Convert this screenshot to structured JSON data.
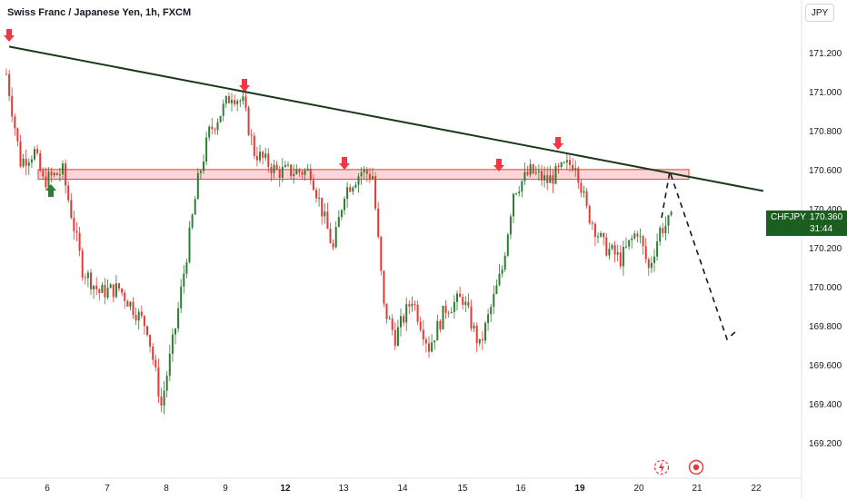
{
  "header": {
    "title": "Swiss Franc / Japanese Yen, 1h, FXCM",
    "currency_button": "JPY"
  },
  "price_tag": {
    "symbol": "CHFJPY",
    "price": "170.360",
    "countdown": "31:44"
  },
  "y_axis": {
    "labels": [
      "171.200",
      "171.000",
      "170.800",
      "170.600",
      "170.400",
      "170.200",
      "170.000",
      "169.800",
      "169.600",
      "169.400",
      "169.200"
    ]
  },
  "x_axis": {
    "labels": [
      "6",
      "7",
      "8",
      "9",
      "12",
      "13",
      "14",
      "15",
      "16",
      "19",
      "20",
      "21",
      "22"
    ],
    "bold_labels": [
      "12",
      "19"
    ]
  },
  "icons": {
    "flash": "lightning-icon",
    "record": "target-icon"
  },
  "colors": {
    "up_candle": "#2e7d32",
    "down_candle": "#e53935",
    "trendline": "#1b3a1b",
    "zone_fill": "#f8c8cc",
    "zone_border": "#e53935",
    "arrow_red": "#f23645",
    "arrow_green": "#2e7d32",
    "price_tag_bg": "#1b5e20"
  },
  "chart_data": {
    "type": "candlestick",
    "symbol": "CHFJPY",
    "timeframe": "1h",
    "ylim": [
      169.15,
      171.35
    ],
    "resistance_zone": [
      170.56,
      170.61
    ],
    "trendline": {
      "start_price": 171.24,
      "end_price": 170.5
    },
    "projection": {
      "from": 170.6,
      "to": 169.74
    },
    "anchors": [
      [
        0,
        171.1
      ],
      [
        5,
        170.65
      ],
      [
        10,
        170.7
      ],
      [
        13,
        170.55
      ],
      [
        20,
        170.6
      ],
      [
        27,
        170.1
      ],
      [
        33,
        169.98
      ],
      [
        40,
        170.0
      ],
      [
        50,
        169.8
      ],
      [
        55,
        169.4
      ],
      [
        60,
        169.8
      ],
      [
        68,
        170.55
      ],
      [
        72,
        170.8
      ],
      [
        80,
        171.0
      ],
      [
        84,
        170.95
      ],
      [
        88,
        170.7
      ],
      [
        96,
        170.6
      ],
      [
        104,
        170.6
      ],
      [
        108,
        170.6
      ],
      [
        112,
        170.4
      ],
      [
        116,
        170.2
      ],
      [
        120,
        170.5
      ],
      [
        126,
        170.6
      ],
      [
        130,
        170.58
      ],
      [
        134,
        169.9
      ],
      [
        138,
        169.75
      ],
      [
        144,
        169.95
      ],
      [
        150,
        169.7
      ],
      [
        156,
        169.9
      ],
      [
        162,
        169.95
      ],
      [
        168,
        169.7
      ],
      [
        172,
        169.9
      ],
      [
        176,
        170.1
      ],
      [
        180,
        170.5
      ],
      [
        186,
        170.6
      ],
      [
        192,
        170.55
      ],
      [
        198,
        170.62
      ],
      [
        202,
        170.65
      ],
      [
        206,
        170.4
      ],
      [
        212,
        170.22
      ],
      [
        218,
        170.15
      ],
      [
        224,
        170.3
      ],
      [
        228,
        170.1
      ],
      [
        232,
        170.3
      ],
      [
        236,
        170.35
      ]
    ]
  }
}
